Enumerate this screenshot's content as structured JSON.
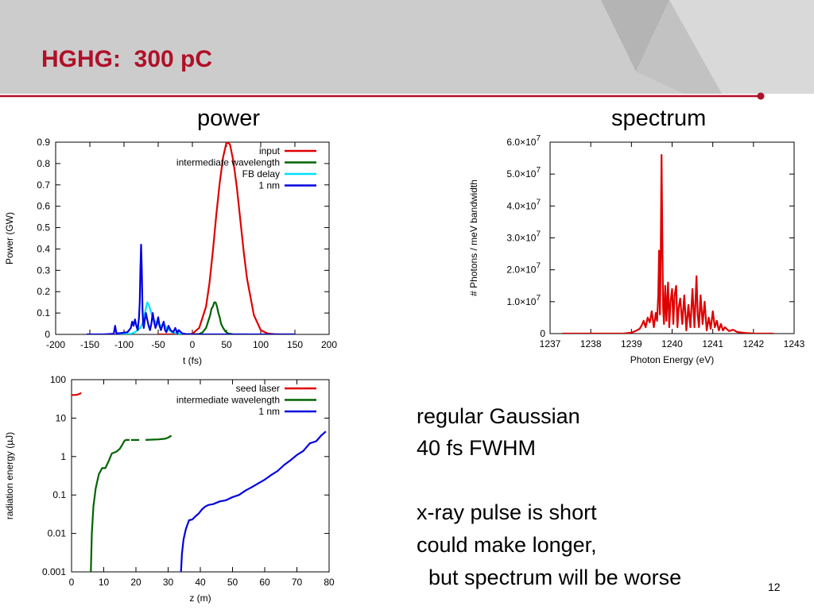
{
  "slide": {
    "title": "HGHG:  300 pC",
    "heading_power": "power",
    "heading_spectrum": "spectrum",
    "notes": [
      "regular Gaussian",
      "40 fs FWHM",
      "",
      "x-ray pulse is short",
      "could make longer,",
      "  but spectrum will be worse"
    ],
    "page_number": "12",
    "colors": {
      "title": "#b01028",
      "rule": "#b01028",
      "header_band": "#cccccc"
    }
  },
  "chart_data": [
    {
      "type": "line",
      "xlabel": "t (fs)",
      "ylabel": "Power (GW)",
      "xlim": [
        -200,
        200
      ],
      "ylim": [
        0,
        0.9
      ],
      "xticks": [
        "-200",
        "-150",
        "-100",
        "-50",
        "0",
        "50",
        "100",
        "150",
        "200"
      ],
      "yticks": [
        "0",
        "0.1",
        "0.2",
        "0.3",
        "0.4",
        "0.5",
        "0.6",
        "0.7",
        "0.8",
        "0.9"
      ],
      "legend_position": "top-right",
      "series": [
        {
          "name": "input",
          "color": "#e00000",
          "x": [
            -50,
            -30,
            -10,
            0,
            10,
            20,
            25,
            30,
            35,
            40,
            45,
            50,
            55,
            60,
            65,
            70,
            75,
            80,
            90,
            100,
            110,
            120,
            130,
            150
          ],
          "y": [
            0,
            0,
            0,
            0.003,
            0.03,
            0.13,
            0.24,
            0.39,
            0.56,
            0.71,
            0.83,
            0.9,
            0.89,
            0.81,
            0.69,
            0.54,
            0.39,
            0.26,
            0.09,
            0.02,
            0.004,
            0.001,
            0,
            0
          ]
        },
        {
          "name": "intermediate wavelength",
          "color": "#006400",
          "x": [
            0,
            10,
            15,
            20,
            23,
            26,
            28,
            30,
            32,
            34,
            36,
            38,
            40,
            42,
            45,
            48,
            52,
            60,
            80
          ],
          "y": [
            0,
            0.002,
            0.01,
            0.03,
            0.06,
            0.09,
            0.12,
            0.13,
            0.15,
            0.15,
            0.13,
            0.1,
            0.08,
            0.05,
            0.03,
            0.015,
            0.005,
            0,
            0
          ]
        },
        {
          "name": "FB delay",
          "color": "#00e0ff",
          "x": [
            -110,
            -100,
            -90,
            -84,
            -80,
            -76,
            -72,
            -68,
            -66,
            -64,
            -62,
            -60,
            -57,
            -54,
            -50,
            -46,
            -42,
            -38,
            -34,
            -30,
            -20,
            -10,
            0
          ],
          "y": [
            0,
            0,
            0.003,
            0.01,
            0.02,
            0.03,
            0.06,
            0.12,
            0.15,
            0.14,
            0.12,
            0.1,
            0.07,
            0.06,
            0.05,
            0.04,
            0.05,
            0.03,
            0.02,
            0.01,
            0.003,
            0,
            0
          ]
        },
        {
          "name": "1 nm",
          "color": "#0000e0",
          "x": [
            -155,
            -130,
            -115,
            -113,
            -111,
            -105,
            -95,
            -90,
            -88,
            -86,
            -84,
            -82,
            -80,
            -78,
            -77,
            -76,
            -75,
            -74,
            -73,
            -72,
            -71,
            -70,
            -68,
            -66,
            -64,
            -62,
            -60,
            -58,
            -56,
            -54,
            -52,
            -50,
            -48,
            -46,
            -44,
            -42,
            -40,
            -38,
            -35,
            -32,
            -28,
            -25,
            -22,
            -20,
            -15,
            -10,
            0,
            20,
            40,
            80,
            120,
            150
          ],
          "y": [
            0,
            0,
            0.003,
            0.04,
            0.004,
            0.006,
            0.01,
            0.03,
            0.06,
            0.04,
            0.07,
            0.04,
            0.02,
            0.08,
            0.15,
            0.3,
            0.42,
            0.3,
            0.12,
            0.05,
            0.03,
            0.06,
            0.1,
            0.07,
            0.04,
            0.02,
            0.05,
            0.1,
            0.06,
            0.03,
            0.05,
            0.08,
            0.04,
            0.02,
            0.04,
            0.06,
            0.02,
            0.01,
            0.04,
            0.02,
            0.01,
            0.03,
            0.005,
            0.02,
            0.005,
            0.002,
            0,
            0,
            0,
            0,
            0,
            0
          ]
        }
      ]
    },
    {
      "type": "line",
      "xlabel": "Photon Energy (eV)",
      "ylabel": "# Photons / meV bandwidth",
      "xlim": [
        1237,
        1243
      ],
      "ylim": [
        0,
        60000000
      ],
      "xticks": [
        "1237",
        "1238",
        "1239",
        "1240",
        "1241",
        "1242",
        "1243"
      ],
      "yticks": [
        {
          "value": 0,
          "mant": "0",
          "exp": ""
        },
        {
          "value": 10000000,
          "mant": "1.0×10",
          "exp": "7"
        },
        {
          "value": 20000000,
          "mant": "2.0×10",
          "exp": "7"
        },
        {
          "value": 30000000,
          "mant": "3.0×10",
          "exp": "7"
        },
        {
          "value": 40000000,
          "mant": "4.0×10",
          "exp": "7"
        },
        {
          "value": 50000000,
          "mant": "5.0×10",
          "exp": "7"
        },
        {
          "value": 60000000,
          "mant": "6.0×10",
          "exp": "7"
        }
      ],
      "series": [
        {
          "name": "",
          "color": "#e00000",
          "x": [
            1237.3,
            1238.0,
            1238.5,
            1238.8,
            1239.0,
            1239.1,
            1239.2,
            1239.25,
            1239.3,
            1239.35,
            1239.4,
            1239.45,
            1239.5,
            1239.55,
            1239.6,
            1239.63,
            1239.66,
            1239.68,
            1239.7,
            1239.72,
            1239.74,
            1239.76,
            1239.78,
            1239.8,
            1239.83,
            1239.86,
            1239.9,
            1239.93,
            1239.96,
            1240.0,
            1240.03,
            1240.06,
            1240.1,
            1240.13,
            1240.16,
            1240.2,
            1240.25,
            1240.3,
            1240.35,
            1240.4,
            1240.45,
            1240.5,
            1240.55,
            1240.6,
            1240.63,
            1240.66,
            1240.7,
            1240.75,
            1240.8,
            1240.85,
            1240.9,
            1240.95,
            1241.0,
            1241.05,
            1241.1,
            1241.15,
            1241.2,
            1241.25,
            1241.3,
            1241.4,
            1241.5,
            1241.6,
            1241.8,
            1242.0,
            1242.5
          ],
          "y": [
            0,
            0,
            0,
            0,
            300000,
            800000,
            1500000,
            2500000,
            4000000,
            2000000,
            5000000,
            3500000,
            7000000,
            2000000,
            6500000,
            4000000,
            12000000,
            26000000,
            6000000,
            24000000,
            56000000,
            30000000,
            8000000,
            3000000,
            15000000,
            4000000,
            16000000,
            2000000,
            10000000,
            14000000,
            3000000,
            12000000,
            15000000,
            2000000,
            8000000,
            11000000,
            3000000,
            12000000,
            1000000,
            9000000,
            2000000,
            14000000,
            2000000,
            18000000,
            6000000,
            2000000,
            12000000,
            3000000,
            10000000,
            1000000,
            5000000,
            1500000,
            7000000,
            2000000,
            4000000,
            1000000,
            3000000,
            1000000,
            2000000,
            800000,
            1200000,
            500000,
            200000,
            50000,
            0
          ]
        }
      ]
    },
    {
      "type": "line",
      "xlabel": "z (m)",
      "ylabel": "radiation energy (µJ)",
      "xlim": [
        0,
        80
      ],
      "ylim": [
        0.001,
        100
      ],
      "yscale": "log",
      "xticks": [
        "0",
        "10",
        "20",
        "30",
        "40",
        "50",
        "60",
        "70",
        "80"
      ],
      "yticks": [
        {
          "value": 0.001,
          "label": "0.001"
        },
        {
          "value": 0.01,
          "label": "0.01"
        },
        {
          "value": 0.1,
          "label": "0.1"
        },
        {
          "value": 1,
          "label": "1"
        },
        {
          "value": 10,
          "label": "10"
        },
        {
          "value": 100,
          "label": "100"
        }
      ],
      "legend_position": "top-right",
      "series": [
        {
          "name": "seed laser",
          "color": "#e00000",
          "x": [
            0,
            1,
            2,
            3
          ],
          "y": [
            40,
            40,
            41,
            45
          ]
        },
        {
          "name": "intermediate wavelength",
          "color": "#006400",
          "segments": [
            {
              "x": [
                6,
                6.3,
                6.8,
                7.5,
                8.5,
                9.5,
                10.5,
                11.5,
                12.5,
                14,
                15,
                16,
                16.5,
                17,
                18
              ],
              "y": [
                0.001,
                0.01,
                0.05,
                0.15,
                0.35,
                0.5,
                0.5,
                0.75,
                1.2,
                1.35,
                1.6,
                2.2,
                2.6,
                2.7,
                2.7
              ]
            },
            {
              "x": [
                18.5,
                21
              ],
              "y": [
                2.7,
                2.7
              ]
            },
            {
              "x": [
                23,
                25,
                27,
                29,
                30,
                31
              ],
              "y": [
                2.7,
                2.75,
                2.8,
                2.9,
                3.1,
                3.5
              ]
            }
          ]
        },
        {
          "name": "1 nm",
          "color": "#0000e0",
          "x": [
            34,
            34.3,
            34.8,
            35.5,
            36.5,
            37.5,
            38.5,
            39.5,
            40.5,
            41.5,
            42.5,
            44,
            46,
            48,
            50,
            52,
            54,
            56,
            58,
            60,
            62,
            64,
            66,
            68,
            70,
            72,
            74,
            76,
            77.5,
            79
          ],
          "y": [
            0.001,
            0.003,
            0.007,
            0.013,
            0.022,
            0.023,
            0.028,
            0.033,
            0.042,
            0.05,
            0.055,
            0.058,
            0.068,
            0.073,
            0.088,
            0.1,
            0.13,
            0.16,
            0.2,
            0.25,
            0.33,
            0.42,
            0.6,
            0.8,
            1.1,
            1.4,
            2.2,
            2.5,
            3.5,
            4.5
          ]
        }
      ]
    }
  ]
}
